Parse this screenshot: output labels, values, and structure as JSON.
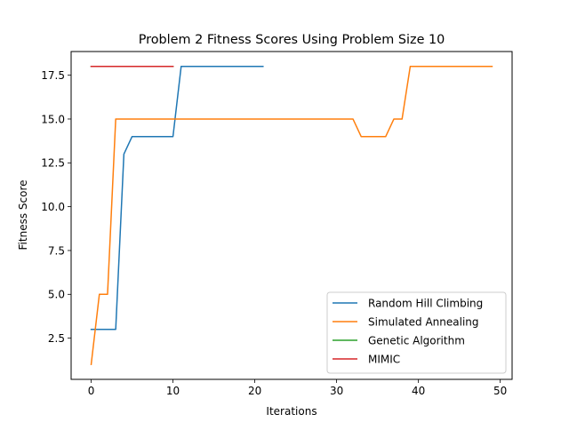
{
  "chart_data": {
    "type": "line",
    "title": "Problem 2 Fitness Scores Using Problem Size 10",
    "xlabel": "Iterations",
    "ylabel": "Fitness Score",
    "xlim": [
      -2.45,
      51.45
    ],
    "ylim": [
      0.15,
      18.85
    ],
    "x_ticks": [
      0,
      10,
      20,
      30,
      40,
      50
    ],
    "x_tick_labels": [
      "0",
      "10",
      "20",
      "30",
      "40",
      "50"
    ],
    "y_ticks": [
      2.5,
      5.0,
      7.5,
      10.0,
      12.5,
      15.0,
      17.5
    ],
    "y_tick_labels": [
      "2.5",
      "5.0",
      "7.5",
      "10.0",
      "12.5",
      "15.0",
      "17.5"
    ],
    "grid": false,
    "legend_position": "lower-right",
    "series": [
      {
        "name": "Random Hill Climbing",
        "color": "#1f77b4",
        "x": [
          0,
          1,
          2,
          3,
          4,
          5,
          6,
          7,
          8,
          9,
          10,
          11,
          12,
          13,
          14,
          15,
          16,
          17,
          18,
          19,
          20,
          21
        ],
        "y": [
          3,
          3,
          3,
          3,
          13,
          14,
          14,
          14,
          14,
          14,
          14,
          18,
          18,
          18,
          18,
          18,
          18,
          18,
          18,
          18,
          18,
          18
        ]
      },
      {
        "name": "Simulated Annealing",
        "color": "#ff7f0e",
        "x": [
          0,
          1,
          2,
          3,
          4,
          5,
          6,
          7,
          8,
          9,
          10,
          11,
          12,
          13,
          14,
          15,
          16,
          17,
          18,
          19,
          20,
          21,
          22,
          23,
          24,
          25,
          26,
          27,
          28,
          29,
          30,
          31,
          32,
          33,
          34,
          35,
          36,
          37,
          38,
          39,
          40,
          41,
          42,
          43,
          44,
          45,
          46,
          47,
          48,
          49
        ],
        "y": [
          1,
          5,
          5,
          15,
          15,
          15,
          15,
          15,
          15,
          15,
          15,
          15,
          15,
          15,
          15,
          15,
          15,
          15,
          15,
          15,
          15,
          15,
          15,
          15,
          15,
          15,
          15,
          15,
          15,
          15,
          15,
          15,
          15,
          14,
          14,
          14,
          14,
          15,
          15,
          18,
          18,
          18,
          18,
          18,
          18,
          18,
          18,
          18,
          18,
          18
        ]
      },
      {
        "name": "Genetic Algorithm",
        "color": "#2ca02c",
        "x": [
          0,
          1,
          2,
          3,
          4,
          5,
          6,
          7,
          8,
          9,
          10
        ],
        "y": [
          18,
          18,
          18,
          18,
          18,
          18,
          18,
          18,
          18,
          18,
          18
        ]
      },
      {
        "name": "MIMIC",
        "color": "#d62728",
        "x": [
          0,
          1,
          2,
          3,
          4,
          5,
          6,
          7,
          8,
          9,
          10
        ],
        "y": [
          18,
          18,
          18,
          18,
          18,
          18,
          18,
          18,
          18,
          18,
          18
        ]
      }
    ]
  }
}
